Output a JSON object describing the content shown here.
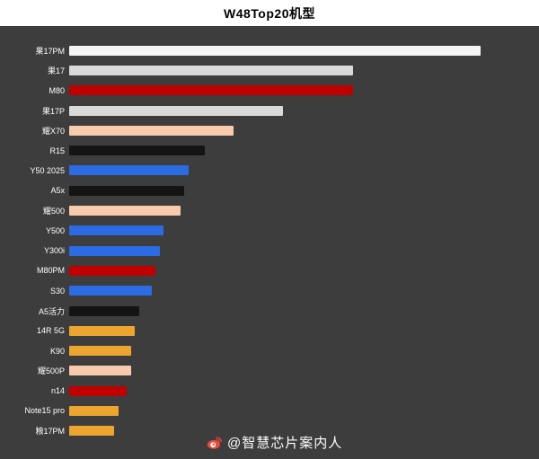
{
  "title": "W48Top20机型",
  "watermark": {
    "handle": "@智慧芯片案内人",
    "icon": "weibo-eye-icon",
    "icon_color": "#e74c3c",
    "text_color": "#ffffff"
  },
  "colors": {
    "background": "#3d3d3d",
    "header_background": "#ffffff",
    "title_text": "#000000",
    "label_text": "#ffffff"
  },
  "chart_data": {
    "type": "bar",
    "orientation": "horizontal",
    "title": "W48Top20机型",
    "xlabel": "",
    "ylabel": "",
    "axis_labels_visible": false,
    "grid": false,
    "legend": false,
    "value_note": "no numeric axis shown; values are relative units with longest bar = 100",
    "xlim": [
      0,
      110
    ],
    "categories": [
      "果17PM",
      "果17",
      "M80",
      "果17P",
      "耀X70",
      "R15",
      "Y50 2025",
      "A5x",
      "耀500",
      "Y500",
      "Y300i",
      "M80PM",
      "S30",
      "A5活力",
      "14R 5G",
      "K90",
      "耀500P",
      "n14",
      "Note15 pro",
      "粮17PM"
    ],
    "values": [
      100,
      69,
      69,
      52,
      40,
      33,
      29,
      28,
      27,
      23,
      22,
      21,
      20,
      17,
      16,
      15,
      15,
      14,
      12,
      11
    ],
    "bar_colors": [
      "#f5f5f5",
      "#d9d9d9",
      "#c00000",
      "#d9d9d9",
      "#f8cbad",
      "#141414",
      "#2b6be4",
      "#141414",
      "#f8cbad",
      "#2b6be4",
      "#2b6be4",
      "#c00000",
      "#2b6be4",
      "#141414",
      "#eda52f",
      "#eda52f",
      "#f8cbad",
      "#c00000",
      "#eda52f",
      "#eda52f"
    ]
  }
}
